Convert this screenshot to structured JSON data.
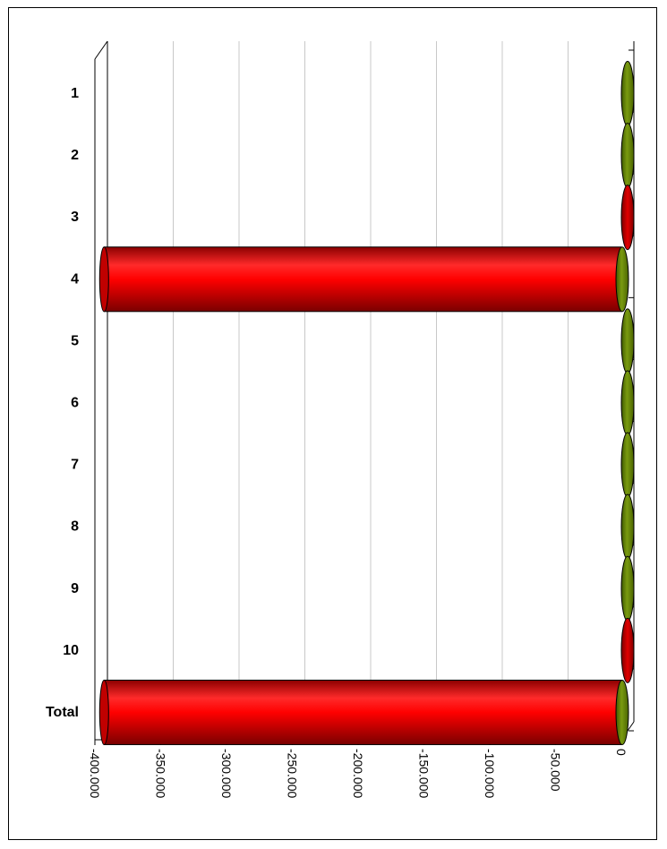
{
  "chart_data": {
    "type": "bar",
    "orientation": "horizontal",
    "style": "3d-cylinder",
    "categories": [
      "1",
      "2",
      "3",
      "4",
      "5",
      "6",
      "7",
      "8",
      "9",
      "10",
      "Total"
    ],
    "values": [
      500,
      500,
      -500,
      -393000,
      0,
      0,
      0,
      0,
      0,
      -500,
      -393000
    ],
    "xlim": [
      -400000,
      0
    ],
    "x_ticks": [
      -400000,
      -350000,
      -300000,
      -250000,
      -200000,
      -150000,
      -100000,
      -50000,
      0
    ],
    "x_tick_labels": [
      "-400.000",
      "-350.000",
      "-300.000",
      "-250.000",
      "-200.000",
      "-150.000",
      "-100.000",
      "-50.000",
      "0"
    ],
    "title": "",
    "xlabel": "",
    "ylabel": "",
    "grid": true,
    "legend": "none",
    "colors": {
      "negative": "#ff0000",
      "positive": "#6b8e00",
      "grid": "#c8c8c8",
      "axis": "#000000"
    }
  }
}
